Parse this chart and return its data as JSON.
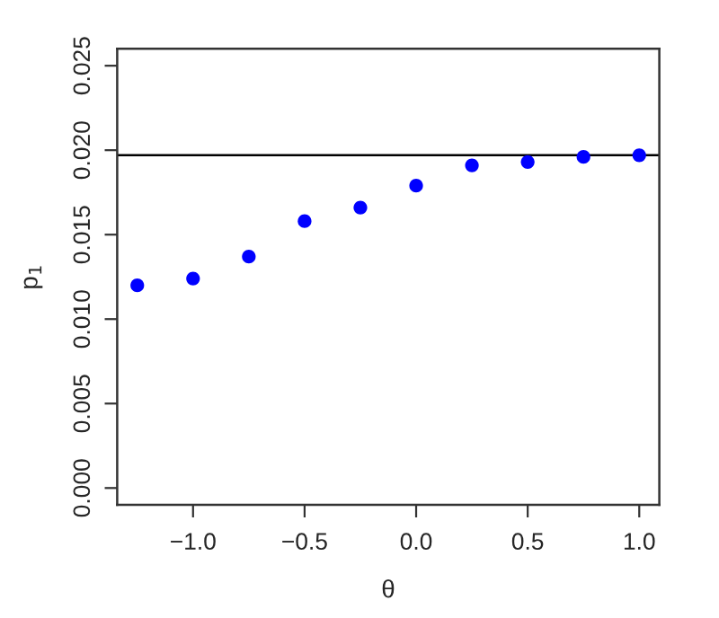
{
  "chart_data": {
    "type": "scatter",
    "xlabel": "θ",
    "ylabel": "p$_{1}$",
    "x": [
      -1.25,
      -1.0,
      -0.75,
      -0.5,
      -0.25,
      0.0,
      0.25,
      0.5,
      0.75,
      1.0
    ],
    "series": [
      {
        "color": "#0000ff",
        "values": [
          0.012,
          0.0124,
          0.0137,
          0.0158,
          0.0166,
          0.0179,
          0.0191,
          0.0193,
          0.0196,
          0.0197
        ]
      }
    ],
    "xlim": [
      -1.34,
      1.09
    ],
    "ylim": [
      -0.001,
      0.026
    ],
    "xticks": [
      {
        "value": -1.0,
        "label": "−1.0"
      },
      {
        "value": -0.5,
        "label": "−0.5"
      },
      {
        "value": 0.0,
        "label": "0.0"
      },
      {
        "value": 0.5,
        "label": "0.5"
      },
      {
        "value": 1.0,
        "label": "1.0"
      }
    ],
    "yticks": [
      {
        "value": 0.0,
        "label": "0.000"
      },
      {
        "value": 0.005,
        "label": "0.005"
      },
      {
        "value": 0.01,
        "label": "0.010"
      },
      {
        "value": 0.015,
        "label": "0.015"
      },
      {
        "value": 0.02,
        "label": "0.020"
      },
      {
        "value": 0.025,
        "label": "0.025"
      }
    ],
    "ref_lines": [
      {
        "axis": "y",
        "value": 0.0197,
        "color": "#000000"
      }
    ],
    "marker": "circle",
    "grid": false,
    "legend": false
  }
}
